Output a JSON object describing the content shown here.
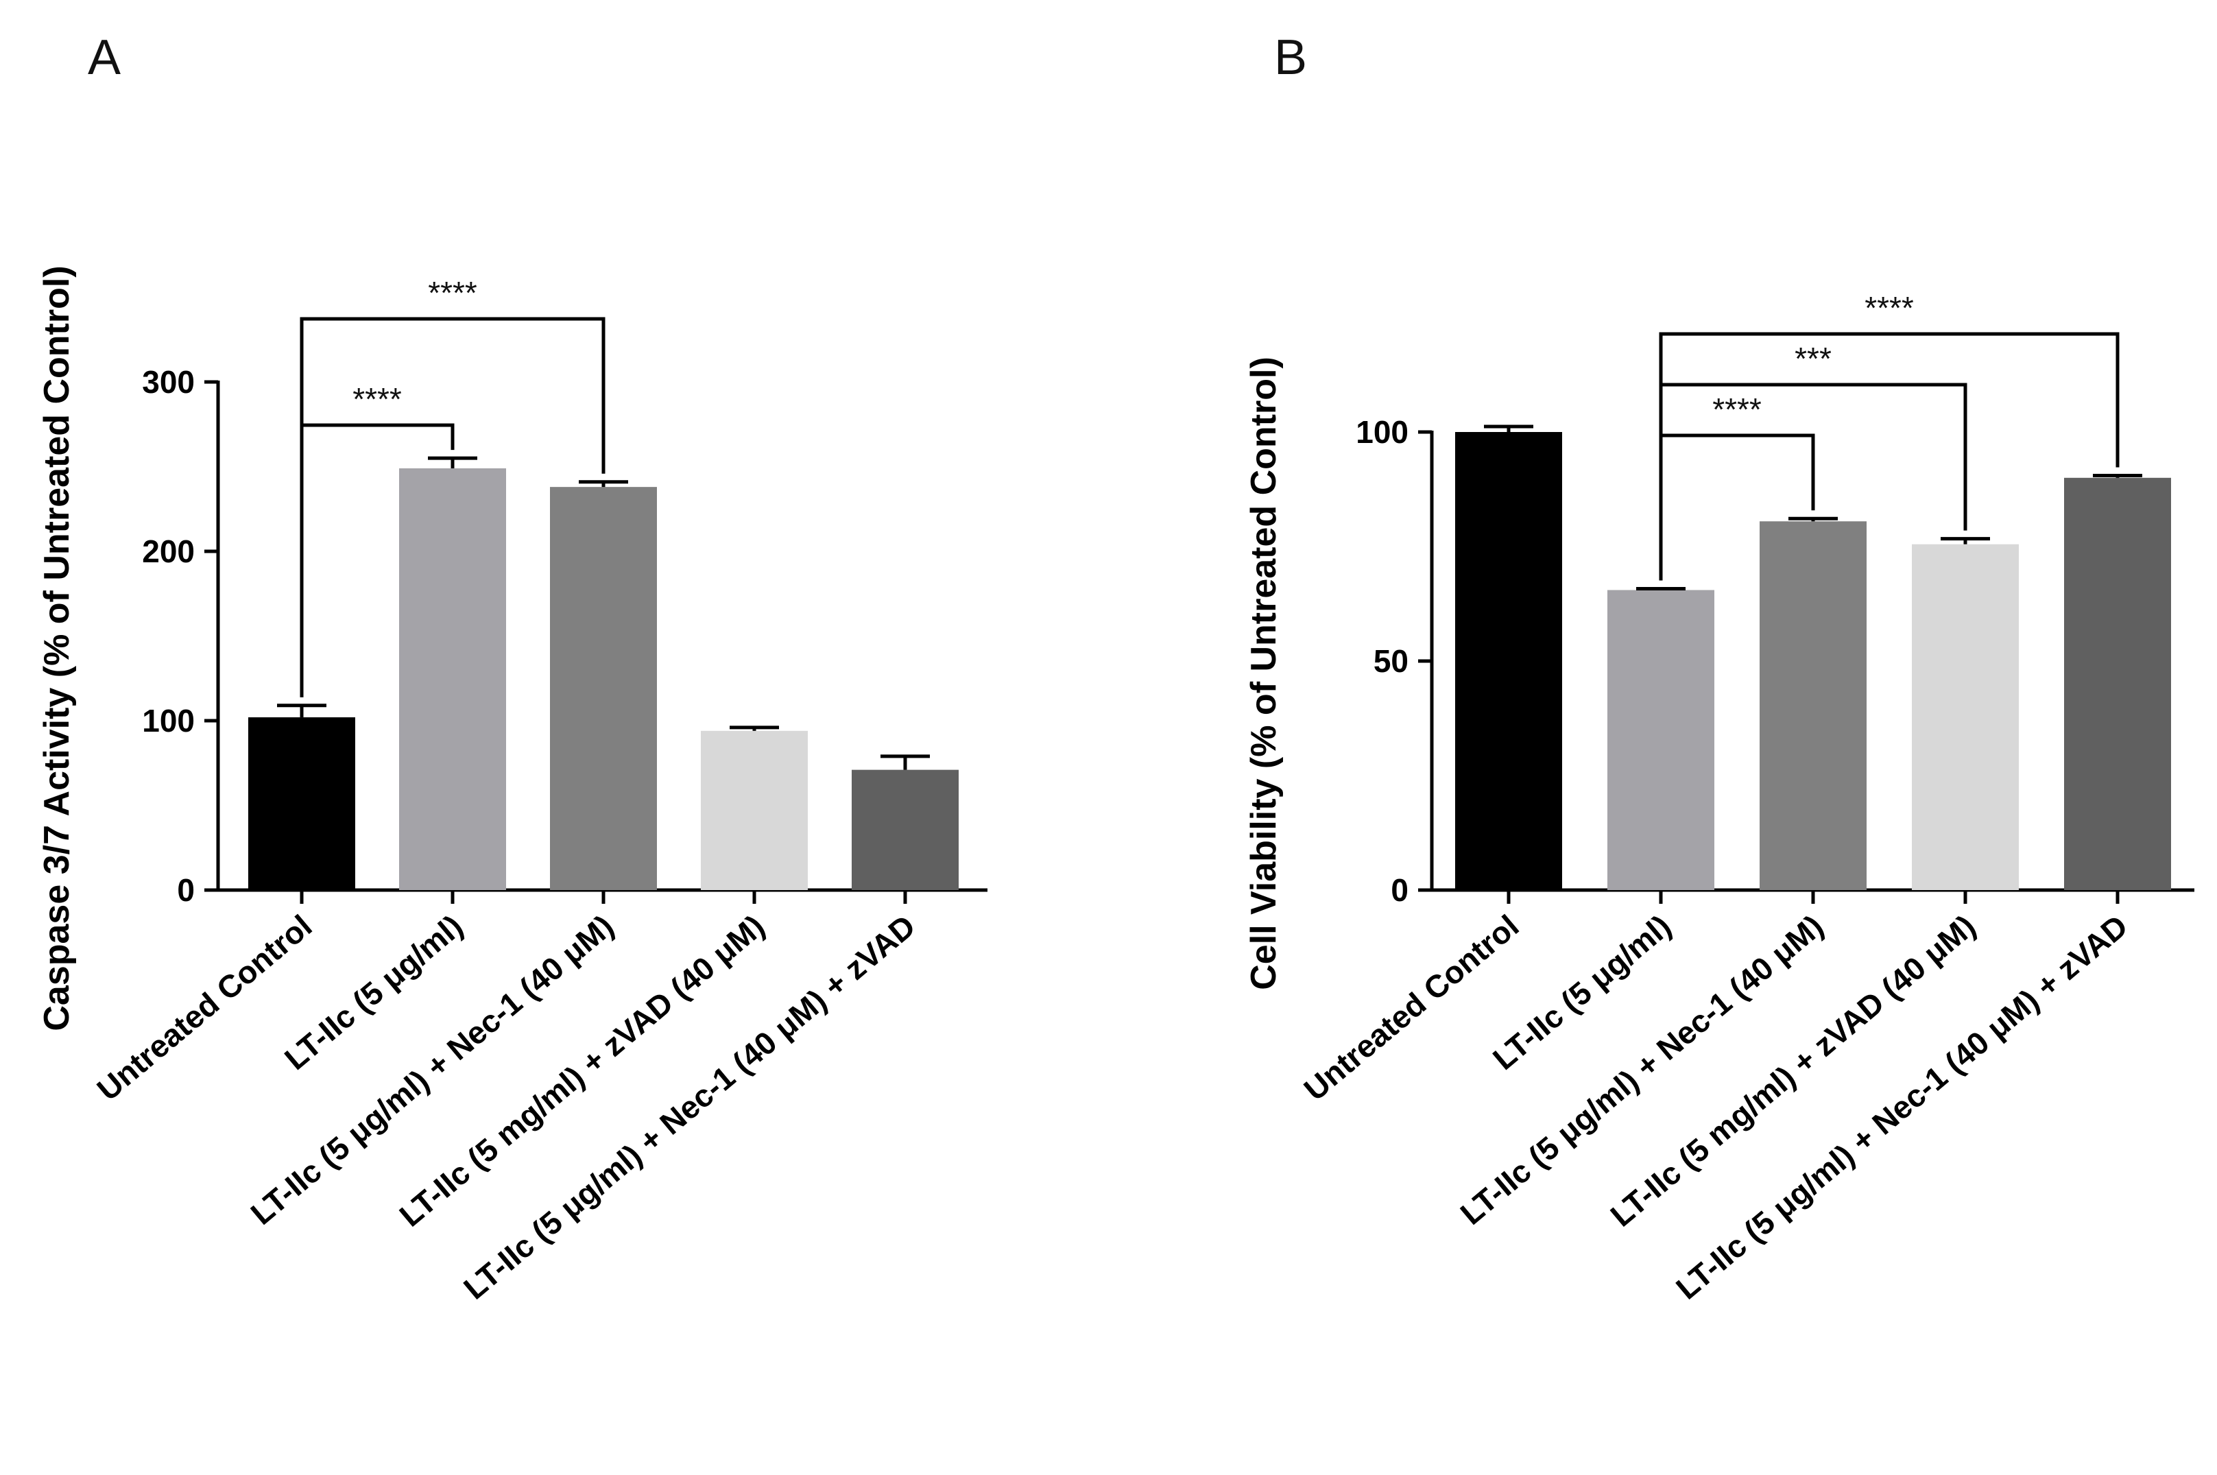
{
  "chart_data": [
    {
      "panel": "A",
      "type": "bar",
      "ylabel": "Caspase 3/7 Activity (% of Untreated Control)",
      "ylim": [
        0,
        300
      ],
      "yticks": [
        0,
        100,
        200,
        300
      ],
      "categories": [
        "Untreated Control",
        "LT-IIc (5 μg/ml)",
        "LT-IIc (5 μg/ml) + Nec-1 (40  μM)",
        "LT-IIc (5 mg/ml) + zVAD (40 μM)",
        "LT-IIc (5 μg/ml) + Nec-1 (40  μM) + zVAD"
      ],
      "values": [
        102,
        249,
        238,
        94,
        71
      ],
      "errors": [
        7,
        6,
        3,
        2,
        8
      ],
      "colors": [
        "#000000",
        "#a4a3a8",
        "#808080",
        "#d8d8d8",
        "#606060"
      ],
      "significance": [
        {
          "from": 0,
          "to": 1,
          "label": "****"
        },
        {
          "from": 0,
          "to": 2,
          "label": "****"
        }
      ]
    },
    {
      "panel": "B",
      "type": "bar",
      "ylabel": "Cell Viability (% of Untreated Control)",
      "ylim": [
        0,
        100
      ],
      "yticks": [
        0,
        50,
        100
      ],
      "categories": [
        "Untreated Control",
        "LT-IIc (5 μg/ml)",
        "LT-IIc (5 μg/ml) + Nec-1 (40  μM)",
        "LT-IIc (5 mg/ml) + zVAD (40 μM)",
        "LT-IIc (5 μg/ml) + Nec-1 (40  μM) + zVAD"
      ],
      "values": [
        100,
        65.5,
        80.5,
        75.5,
        90
      ],
      "errors": [
        1.2,
        0.3,
        0.6,
        1.2,
        0.5
      ],
      "colors": [
        "#000000",
        "#a4a3a8",
        "#808080",
        "#d8d8d8",
        "#606060"
      ],
      "significance": [
        {
          "from": 1,
          "to": 2,
          "label": "****"
        },
        {
          "from": 1,
          "to": 3,
          "label": "***"
        },
        {
          "from": 1,
          "to": 4,
          "label": "****"
        }
      ]
    }
  ]
}
